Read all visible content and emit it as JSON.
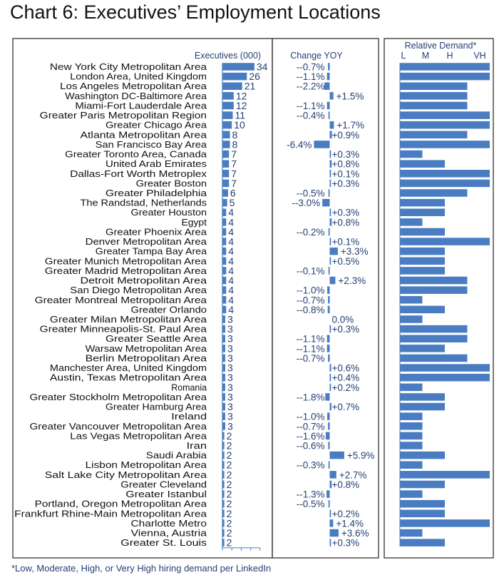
{
  "chart_data": {
    "type": "bar",
    "title": "Chart 6: Executives’ Employment Locations",
    "footnote": "*Low, Moderate, High, or Very High hiring demand per LinkedIn",
    "color": "#4a7cc2",
    "text_color": "#233f73",
    "panels": {
      "executives": {
        "label": "Executives (000)",
        "xlim": [
          0,
          40
        ]
      },
      "change": {
        "label": "Change YOY"
      },
      "demand": {
        "label": "Relative Demand*",
        "levels": [
          "L",
          "M",
          "H",
          "VH"
        ]
      }
    },
    "rows": [
      {
        "location": "New York City Metropolitan Area",
        "executives": 34,
        "change": -0.7,
        "change_label": "--0.7%",
        "demand": 4
      },
      {
        "location": "London Area, United Kingdom",
        "executives": 26,
        "change": -1.1,
        "change_label": "--1.1%",
        "demand": 4
      },
      {
        "location": "Los Angeles Metropolitan Area",
        "executives": 21,
        "change": -2.2,
        "change_label": "--2.2%",
        "demand": 3
      },
      {
        "location": "Washington DC-Baltimore Area",
        "executives": 12,
        "change": 1.5,
        "change_label": "+1.5%",
        "demand": 3
      },
      {
        "location": "Miami-Fort Lauderdale Area",
        "executives": 12,
        "change": -1.1,
        "change_label": "--1.1%",
        "demand": 3
      },
      {
        "location": "Greater Paris Metropolitan Region",
        "executives": 11,
        "change": -0.4,
        "change_label": "--0.4%",
        "demand": 4
      },
      {
        "location": "Greater Chicago Area",
        "executives": 10,
        "change": 1.7,
        "change_label": "+1.7%",
        "demand": 4
      },
      {
        "location": "Atlanta Metropolitan Area",
        "executives": 8,
        "change": 0.9,
        "change_label": "+0.9%",
        "demand": 3
      },
      {
        "location": "San Francisco Bay Area",
        "executives": 8,
        "change": -6.4,
        "change_label": "-6.4%",
        "demand": 4
      },
      {
        "location": "Greater Toronto Area, Canada",
        "executives": 7,
        "change": 0.3,
        "change_label": "+0.3%",
        "demand": 1
      },
      {
        "location": "United Arab Emirates",
        "executives": 7,
        "change": 0.8,
        "change_label": "+0.8%",
        "demand": 2
      },
      {
        "location": "Dallas-Fort Worth Metroplex",
        "executives": 7,
        "change": 0.1,
        "change_label": "+0.1%",
        "demand": 4
      },
      {
        "location": "Greater Boston",
        "executives": 7,
        "change": 0.3,
        "change_label": "+0.3%",
        "demand": 4
      },
      {
        "location": "Greater Philadelphia",
        "executives": 6,
        "change": -0.5,
        "change_label": "--0.5%",
        "demand": 3
      },
      {
        "location": "The Randstad, Netherlands",
        "executives": 5,
        "change": -3.0,
        "change_label": "--3.0%",
        "demand": 2
      },
      {
        "location": "Greater Houston",
        "executives": 4,
        "change": 0.3,
        "change_label": "+0.3%",
        "demand": 2
      },
      {
        "location": "Egypt",
        "executives": 4,
        "change": 0.8,
        "change_label": "+0.8%",
        "demand": 1
      },
      {
        "location": "Greater Phoenix Area",
        "executives": 4,
        "change": -0.2,
        "change_label": "--0.2%",
        "demand": 2
      },
      {
        "location": "Denver Metropolitan Area",
        "executives": 4,
        "change": 0.1,
        "change_label": "+0.1%",
        "demand": 4
      },
      {
        "location": "Greater Tampa Bay Area",
        "executives": 4,
        "change": 3.3,
        "change_label": "+3.3%",
        "demand": 2
      },
      {
        "location": "Greater Munich Metropolitan Area",
        "executives": 4,
        "change": 0.5,
        "change_label": "+0.5%",
        "demand": 2
      },
      {
        "location": "Greater Madrid Metropolitan Area",
        "executives": 4,
        "change": -0.1,
        "change_label": "--0.1%",
        "demand": 2
      },
      {
        "location": "Detroit Metropolitan Area",
        "executives": 4,
        "change": 2.3,
        "change_label": "+2.3%",
        "demand": 3
      },
      {
        "location": "San Diego Metropolitan Area",
        "executives": 4,
        "change": -1.0,
        "change_label": "--1.0%",
        "demand": 3
      },
      {
        "location": "Greater Montreal Metropolitan Area",
        "executives": 4,
        "change": -0.7,
        "change_label": "--0.7%",
        "demand": 1
      },
      {
        "location": "Greater Orlando",
        "executives": 4,
        "change": -0.8,
        "change_label": "--0.8%",
        "demand": 2
      },
      {
        "location": "Greater Milan Metropolitan Area",
        "executives": 3,
        "change": 0.0,
        "change_label": "0.0%",
        "demand": 1
      },
      {
        "location": "Greater Minneapolis-St. Paul Area",
        "executives": 3,
        "change": 0.3,
        "change_label": "+0.3%",
        "demand": 3
      },
      {
        "location": "Greater Seattle Area",
        "executives": 3,
        "change": -1.1,
        "change_label": "--1.1%",
        "demand": 3
      },
      {
        "location": "Warsaw Metropolitan Area",
        "executives": 3,
        "change": -1.1,
        "change_label": "--1.1%",
        "demand": 2
      },
      {
        "location": "Berlin Metropolitan Area",
        "executives": 3,
        "change": -0.7,
        "change_label": "--0.7%",
        "demand": 3
      },
      {
        "location": "Manchester Area, United Kingdom",
        "executives": 3,
        "change": 0.6,
        "change_label": "+0.6%",
        "demand": 4
      },
      {
        "location": "Austin, Texas Metropolitan Area",
        "executives": 3,
        "change": 0.4,
        "change_label": "+0.4%",
        "demand": 4
      },
      {
        "location": "Romania",
        "executives": 3,
        "change": 0.2,
        "change_label": "+0.2%",
        "demand": 1
      },
      {
        "location": "Greater Stockholm Metropolitan Area",
        "executives": 3,
        "change": -1.8,
        "change_label": "--1.8%",
        "demand": 2
      },
      {
        "location": "Greater Hamburg Area",
        "executives": 3,
        "change": 0.7,
        "change_label": "+0.7%",
        "demand": 2
      },
      {
        "location": "Ireland",
        "executives": 3,
        "change": -1.0,
        "change_label": "--1.0%",
        "demand": 1
      },
      {
        "location": "Greater Vancouver Metropolitan Area",
        "executives": 3,
        "change": -0.7,
        "change_label": "--0.7%",
        "demand": 1
      },
      {
        "location": "Las Vegas Metropolitan Area",
        "executives": 2,
        "change": -1.6,
        "change_label": "--1.6%",
        "demand": 1
      },
      {
        "location": "Iran",
        "executives": 2,
        "change": -0.6,
        "change_label": "--0.6%",
        "demand": 1
      },
      {
        "location": "Saudi Arabia",
        "executives": 2,
        "change": 5.9,
        "change_label": "+5.9%",
        "demand": 2
      },
      {
        "location": "Lisbon Metropolitan Area",
        "executives": 2,
        "change": -0.3,
        "change_label": "--0.3%",
        "demand": 1
      },
      {
        "location": "Salt Lake City Metropolitan Area",
        "executives": 2,
        "change": 2.7,
        "change_label": "+2.7%",
        "demand": 4
      },
      {
        "location": "Greater Cleveland",
        "executives": 2,
        "change": 0.8,
        "change_label": "+0.8%",
        "demand": 2
      },
      {
        "location": "Greater Istanbul",
        "executives": 2,
        "change": -1.3,
        "change_label": "--1.3%",
        "demand": 1
      },
      {
        "location": "Portland, Oregon Metropolitan Area",
        "executives": 2,
        "change": -0.5,
        "change_label": "--0.5%",
        "demand": 2
      },
      {
        "location": "Frankfurt Rhine-Main Metropolitan Area",
        "executives": 2,
        "change": 0.2,
        "change_label": "+0.2%",
        "demand": 2
      },
      {
        "location": "Charlotte Metro",
        "executives": 2,
        "change": 1.4,
        "change_label": "+1.4%",
        "demand": 4
      },
      {
        "location": "Vienna, Austria",
        "executives": 2,
        "change": 3.6,
        "change_label": "+3.6%",
        "demand": 1
      },
      {
        "location": "Greater St. Louis",
        "executives": 2,
        "change": 0.3,
        "change_label": "+0.3%",
        "demand": 2
      }
    ]
  }
}
